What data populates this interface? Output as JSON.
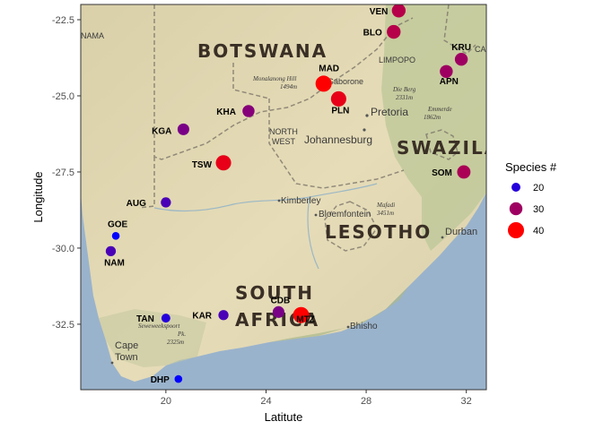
{
  "chart_data": {
    "type": "scatter",
    "xlabel": "Latitute",
    "ylabel": "Longitude",
    "xlim": [
      16.6,
      32.8
    ],
    "ylim": [
      -34.65,
      -22.0
    ],
    "x_ticks": [
      20,
      24,
      28,
      32
    ],
    "y_ticks": [
      -22.5,
      -25.0,
      -27.5,
      -30.0,
      -32.5
    ],
    "y_tick_labels": [
      "-22.5",
      "-25.0",
      "-27.5",
      "-30.0",
      "-32.5"
    ],
    "legend": {
      "title": "Species #",
      "entries": [
        {
          "label": "20",
          "value": 20
        },
        {
          "label": "30",
          "value": 30
        },
        {
          "label": "40",
          "value": 40
        }
      ],
      "placement": "right"
    },
    "points": [
      {
        "label": "VEN",
        "x": 29.3,
        "y": -22.2,
        "species": 32
      },
      {
        "label": "BLO",
        "x": 29.1,
        "y": -22.9,
        "species": 32
      },
      {
        "label": "KRU",
        "x": 31.8,
        "y": -23.8,
        "species": 30
      },
      {
        "label": "APN",
        "x": 31.2,
        "y": -24.2,
        "species": 30
      },
      {
        "label": "MAD",
        "x": 26.3,
        "y": -24.6,
        "species": 38
      },
      {
        "label": "PLN",
        "x": 26.9,
        "y": -25.1,
        "species": 36
      },
      {
        "label": "KHA",
        "x": 23.3,
        "y": -25.5,
        "species": 28
      },
      {
        "label": "KGA",
        "x": 20.7,
        "y": -26.1,
        "species": 27
      },
      {
        "label": "TSW",
        "x": 22.3,
        "y": -27.2,
        "species": 36
      },
      {
        "label": "SOM",
        "x": 31.9,
        "y": -27.5,
        "species": 31
      },
      {
        "label": "AUG",
        "x": 20.0,
        "y": -28.5,
        "species": 23
      },
      {
        "label": "GOE",
        "x": 18.0,
        "y": -29.6,
        "species": 17
      },
      {
        "label": "NAM",
        "x": 17.8,
        "y": -30.1,
        "species": 23
      },
      {
        "label": "CDB",
        "x": 24.5,
        "y": -32.1,
        "species": 27
      },
      {
        "label": "MTZ",
        "x": 25.4,
        "y": -32.2,
        "species": 38
      },
      {
        "label": "KAR",
        "x": 22.3,
        "y": -32.2,
        "species": 23
      },
      {
        "label": "TAN",
        "x": 20.0,
        "y": -32.3,
        "species": 20
      },
      {
        "label": "DHP",
        "x": 20.5,
        "y": -34.3,
        "species": 17
      }
    ]
  },
  "map_labels": {
    "countries": [
      "BOTSWANA",
      "SWAZILAND",
      "LESOTHO",
      "SOUTH",
      "AFRICA"
    ],
    "regions": [
      "LIMPOPO",
      "NORTH",
      "WEST",
      "NAMA"
    ],
    "cities": [
      "Pretoria",
      "Johannesburg",
      "Kimberley",
      "Bloemfontein",
      "Durban",
      "Bhisho",
      "Cape",
      "Town",
      "Gaborone"
    ],
    "peaks": [
      "Monalanong Hill",
      "1494m",
      "Die Berg",
      "2331m",
      "Emmerde",
      "1862m",
      "Mafadi",
      "3451m",
      "Seweweekspoort",
      "Pk.",
      "2325m"
    ],
    "corner_labels": [
      "CA"
    ]
  },
  "colors": {
    "panel_border": "#333333",
    "ocean": "#9ab3cc",
    "land": "#e3d8b4",
    "green_land": "#bdc89a",
    "tick_text": "#4d4d4d"
  }
}
